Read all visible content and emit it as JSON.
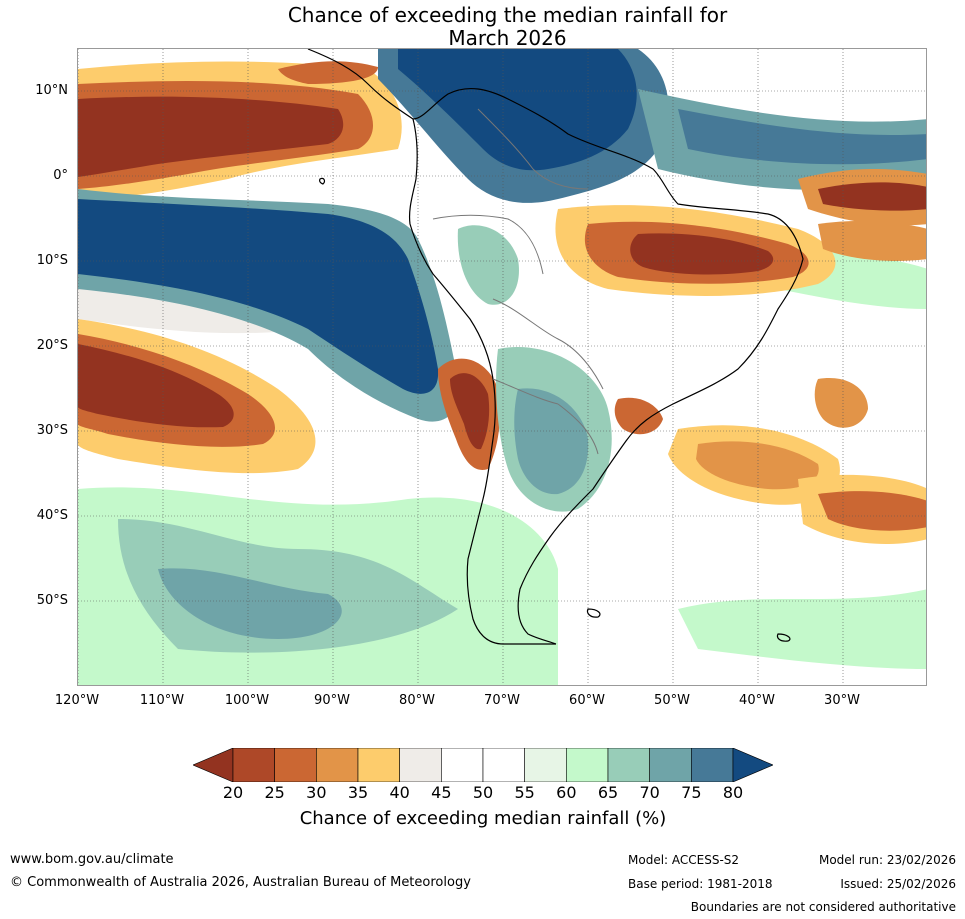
{
  "title_line1": "Chance of exceeding the median rainfall for",
  "title_line2": "March 2026",
  "lat_labels": [
    "10°N",
    "0°",
    "10°S",
    "20°S",
    "30°S",
    "40°S",
    "50°S"
  ],
  "lon_labels": [
    "120°W",
    "110°W",
    "100°W",
    "90°W",
    "80°W",
    "70°W",
    "60°W",
    "50°W",
    "40°W",
    "30°W"
  ],
  "colorbar": {
    "ticks": [
      "20",
      "25",
      "30",
      "35",
      "40",
      "45",
      "50",
      "55",
      "60",
      "65",
      "70",
      "75",
      "80"
    ],
    "label": "Chance of exceeding median rainfall (%)",
    "colors": [
      "#933320",
      "#ae4828",
      "#cb6733",
      "#e29448",
      "#fdcc6c",
      "#efece8",
      "#ffffff",
      "#ffffff",
      "#e7f5e6",
      "#c4f9cb",
      "#98cdb8",
      "#6fa4a8",
      "#467997",
      "#134a80"
    ]
  },
  "footer": {
    "website": "www.bom.gov.au/climate",
    "copyright": "© Commonwealth of Australia 2026, Australian Bureau of Meteorology",
    "model": "Model: ACCESS-S2",
    "base_period": "Base period: 1981-2018",
    "model_run": "Model run: 23/02/2026",
    "issued": "Issued: 25/02/2026",
    "disclaimer": "Boundaries are not considered authoritative"
  }
}
